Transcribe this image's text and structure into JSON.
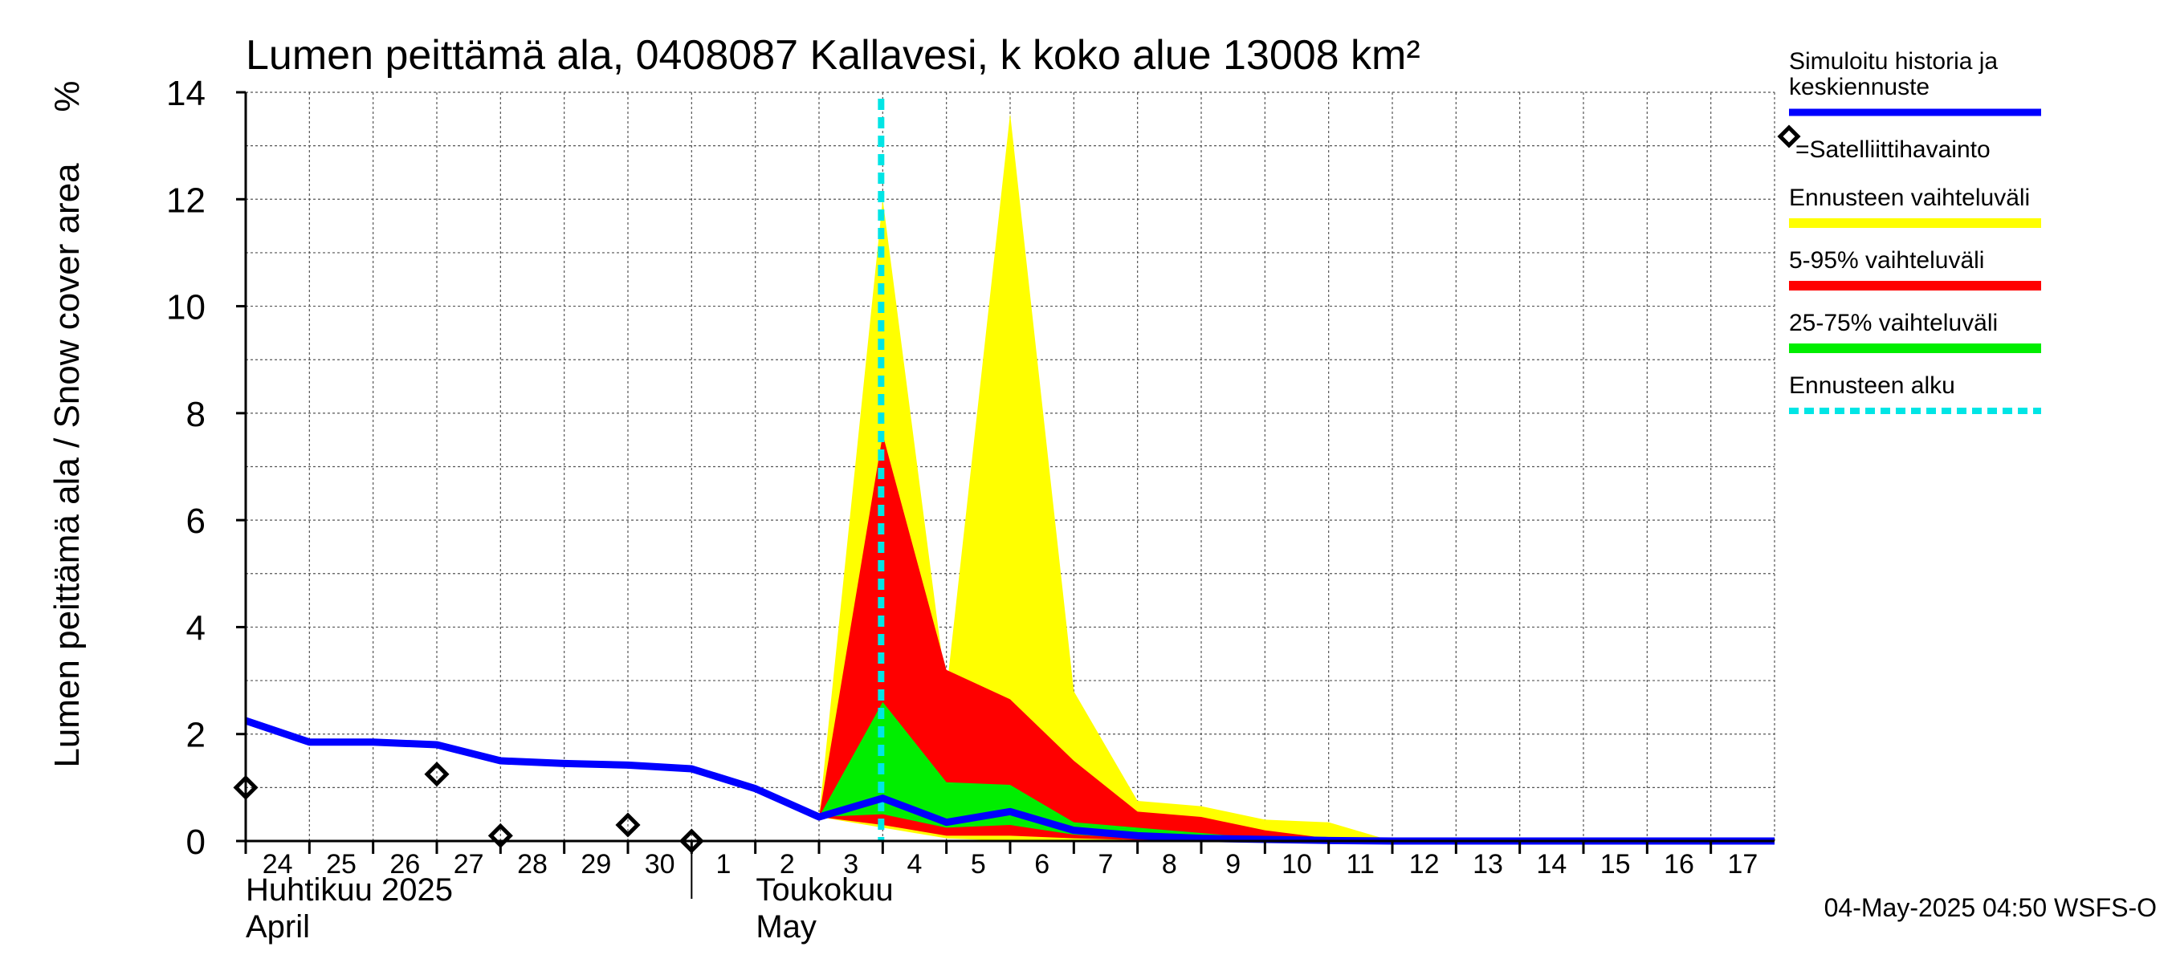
{
  "chart_data": {
    "type": "area",
    "title": "Lumen peittämä ala, 0408087 Kallavesi, k koko alue 13008 km²",
    "ylabel": "Lumen peittämä ala / Snow cover area",
    "yunit": "%",
    "ylim": [
      0,
      14
    ],
    "yticks": [
      "0",
      "2",
      "4",
      "6",
      "8",
      "10",
      "12",
      "14"
    ],
    "x_dates": [
      "2025-04-24",
      "2025-04-25",
      "2025-04-26",
      "2025-04-27",
      "2025-04-28",
      "2025-04-29",
      "2025-04-30",
      "2025-05-01",
      "2025-05-02",
      "2025-05-03",
      "2025-05-04",
      "2025-05-05",
      "2025-05-06",
      "2025-05-07",
      "2025-05-08",
      "2025-05-09",
      "2025-05-10",
      "2025-05-11",
      "2025-05-12",
      "2025-05-13",
      "2025-05-14",
      "2025-05-15",
      "2025-05-16",
      "2025-05-17"
    ],
    "xtick_labels": [
      "24",
      "25",
      "26",
      "27",
      "28",
      "29",
      "30",
      "1",
      "2",
      "3",
      "4",
      "5",
      "6",
      "7",
      "8",
      "9",
      "10",
      "11",
      "12",
      "13",
      "14",
      "15",
      "16",
      "17"
    ],
    "months": [
      {
        "fi": "Huhtikuu  2025",
        "en": "April",
        "start": "2025-04-24"
      },
      {
        "fi": "Toukokuu",
        "en": "May",
        "start": "2025-05-01"
      }
    ],
    "forecast_start": "2025-05-04",
    "series": [
      {
        "name": "Simuloitu historia ja keskiennuste",
        "color": "#0000ff",
        "x": [
          "2025-04-24",
          "2025-04-25",
          "2025-04-26",
          "2025-04-27",
          "2025-04-28",
          "2025-04-29",
          "2025-04-30",
          "2025-05-01",
          "2025-05-02",
          "2025-05-03",
          "2025-05-04",
          "2025-05-05",
          "2025-05-06",
          "2025-05-07",
          "2025-05-08",
          "2025-05-09",
          "2025-05-10",
          "2025-05-11",
          "2025-05-12",
          "2025-05-18"
        ],
        "y": [
          2.25,
          1.85,
          1.85,
          1.8,
          1.5,
          1.45,
          1.42,
          1.35,
          0.98,
          0.45,
          0.8,
          0.35,
          0.55,
          0.2,
          0.1,
          0.05,
          0.03,
          0.01,
          0.0,
          0.0
        ]
      },
      {
        "name": "=Satelliittihavainto",
        "color": "#000000",
        "x": [
          "2025-04-24",
          "2025-04-27",
          "2025-04-28",
          "2025-04-30",
          "2025-05-01"
        ],
        "y": [
          1.0,
          1.25,
          0.1,
          0.3,
          0.0
        ]
      }
    ],
    "bands": [
      {
        "name": "Ennusteen vaihteluväli",
        "color": "#ffff00",
        "x": [
          "2025-05-03",
          "2025-05-04",
          "2025-05-05",
          "2025-05-06",
          "2025-05-07",
          "2025-05-08",
          "2025-05-09",
          "2025-05-10",
          "2025-05-11",
          "2025-05-12"
        ],
        "low": [
          0.45,
          0.25,
          0.05,
          0.0,
          0.0,
          0.0,
          0.0,
          0.0,
          0.0,
          0.0
        ],
        "high": [
          0.45,
          12.0,
          2.8,
          13.6,
          2.8,
          0.75,
          0.65,
          0.4,
          0.35,
          0.0
        ]
      },
      {
        "name": "5-95% vaihteluväli",
        "color": "#ff0000",
        "x": [
          "2025-05-03",
          "2025-05-04",
          "2025-05-05",
          "2025-05-06",
          "2025-05-07",
          "2025-05-08",
          "2025-05-09",
          "2025-05-10",
          "2025-05-11",
          "2025-05-12"
        ],
        "low": [
          0.45,
          0.3,
          0.1,
          0.1,
          0.05,
          0.02,
          0.0,
          0.0,
          0.0,
          0.0
        ],
        "high": [
          0.45,
          7.6,
          3.2,
          2.65,
          1.5,
          0.55,
          0.45,
          0.2,
          0.05,
          0.0
        ]
      },
      {
        "name": "25-75% vaihteluväli",
        "color": "#00ee00",
        "x": [
          "2025-05-03",
          "2025-05-04",
          "2025-05-05",
          "2025-05-06",
          "2025-05-07",
          "2025-05-08",
          "2025-05-09",
          "2025-05-10",
          "2025-05-11",
          "2025-05-12"
        ],
        "low": [
          0.45,
          0.5,
          0.25,
          0.3,
          0.12,
          0.05,
          0.02,
          0.0,
          0.0,
          0.0
        ],
        "high": [
          0.45,
          2.6,
          1.1,
          1.05,
          0.35,
          0.25,
          0.15,
          0.05,
          0.02,
          0.0
        ]
      }
    ],
    "legend": [
      {
        "label": "Simuloitu historia ja keskiennuste",
        "kind": "line",
        "color": "#0000ff"
      },
      {
        "label": "=Satelliittihavainto",
        "kind": "marker",
        "color": "#000000"
      },
      {
        "label": "Ennusteen vaihteluväli",
        "kind": "line",
        "color": "#ffff00"
      },
      {
        "label": "5-95% vaihteluväli",
        "kind": "line",
        "color": "#ff0000"
      },
      {
        "label": "25-75% vaihteluväli",
        "kind": "line",
        "color": "#00ee00"
      },
      {
        "label": "Ennusteen alku",
        "kind": "dashed",
        "color": "#00e5e5"
      }
    ],
    "legend_position": "right",
    "grid": true,
    "timestamp": "04-May-2025 04:50 WSFS-O"
  }
}
